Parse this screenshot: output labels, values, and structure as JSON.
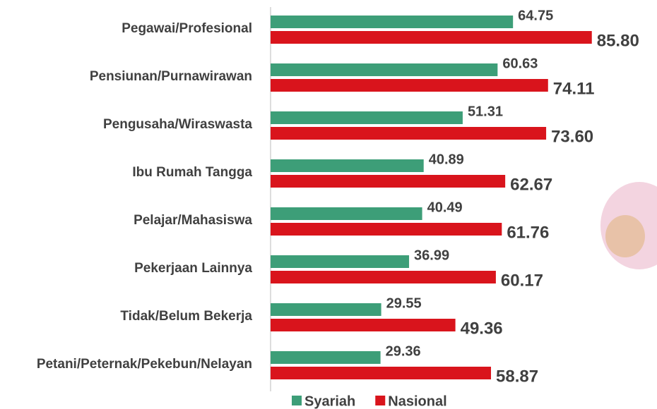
{
  "chart_data": {
    "type": "bar",
    "orientation": "horizontal",
    "categories": [
      "Pegawai/Profesional",
      "Pensiunan/Purnawirawan",
      "Pengusaha/Wiraswasta",
      "Ibu Rumah Tangga",
      "Pelajar/Mahasiswa",
      "Pekerjaan Lainnya",
      "Tidak/Belum Bekerja",
      "Petani/Peternak/Pekebun/Nelayan"
    ],
    "series": [
      {
        "name": "Syariah",
        "color": "#3d9e78",
        "values": [
          64.75,
          60.63,
          51.31,
          40.89,
          40.49,
          36.99,
          29.55,
          29.36
        ],
        "value_labels": [
          "64.75",
          "60.63",
          "51.31",
          "40.89",
          "40.49",
          "36.99",
          "29.55",
          "29.36"
        ]
      },
      {
        "name": "Nasional",
        "color": "#d9141c",
        "values": [
          85.8,
          74.11,
          73.6,
          62.67,
          61.76,
          60.17,
          49.36,
          58.87
        ],
        "value_labels": [
          "85.80",
          "74.11",
          "73.60",
          "62.67",
          "61.76",
          "60.17",
          "49.36",
          "58.87"
        ]
      }
    ],
    "xlim": [
      0,
      100
    ],
    "legend": "bottom"
  }
}
